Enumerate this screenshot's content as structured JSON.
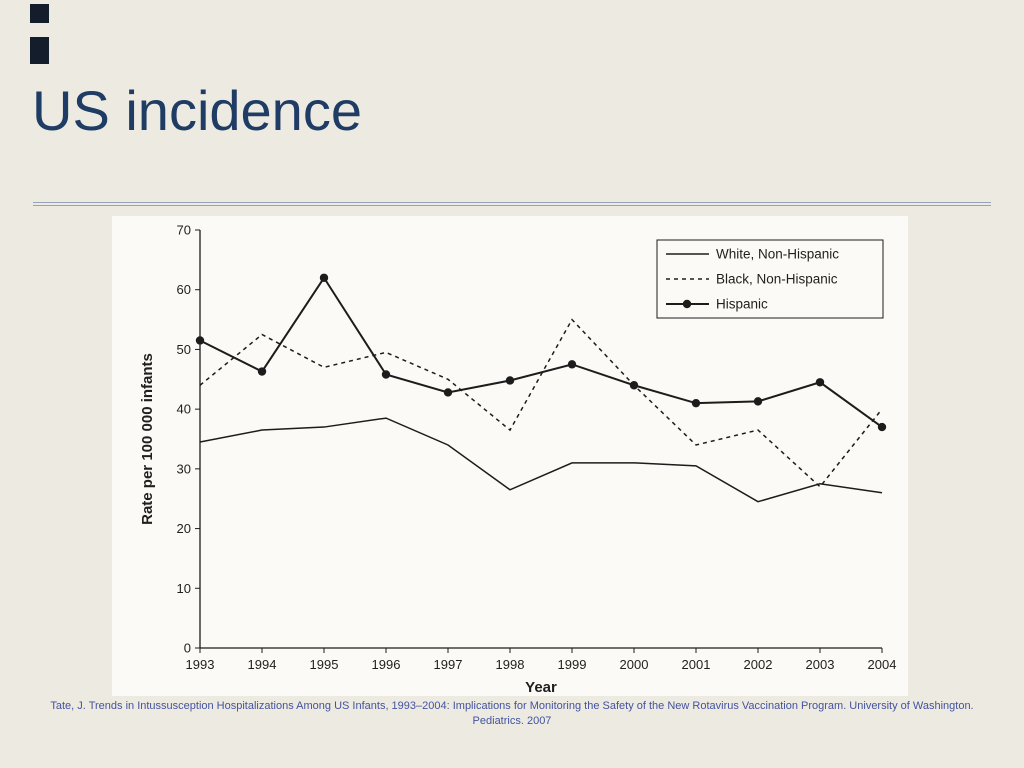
{
  "slide": {
    "title": "US incidence",
    "citation_line1": "Tate, J. Trends in Intussusception Hospitalizations Among US Infants, 1993–2004: Implications for Monitoring the Safety of the New Rotavirus Vaccination Program. University of Washington.",
    "citation_line2": "Pediatrics. 2007"
  },
  "chart_data": {
    "type": "line",
    "title": "",
    "xlabel": "Year",
    "ylabel": "Rate per 100 000 infants",
    "x": [
      1993,
      1994,
      1995,
      1996,
      1997,
      1998,
      1999,
      2000,
      2001,
      2002,
      2003,
      2004
    ],
    "ylim": [
      0,
      70
    ],
    "yticks": [
      0,
      10,
      20,
      30,
      40,
      50,
      60,
      70
    ],
    "grid": false,
    "legend_position": "top-right",
    "line_color": "#1c1c1c",
    "series": [
      {
        "id": "white-non-hispanic",
        "name": "White, Non-Hispanic",
        "line": "solid",
        "marker": false,
        "values": [
          34.5,
          36.5,
          37,
          38.5,
          34,
          26.5,
          31,
          31,
          30.5,
          24.5,
          27.5,
          26
        ]
      },
      {
        "id": "black-non-hispanic",
        "name": "Black, Non-Hispanic",
        "line": "dashed",
        "marker": false,
        "values": [
          44,
          52.5,
          47,
          49.5,
          45,
          36.5,
          55,
          44,
          34,
          36.5,
          27,
          40
        ]
      },
      {
        "id": "hispanic",
        "name": "Hispanic",
        "line": "solid",
        "marker": true,
        "values": [
          51.5,
          46.3,
          62,
          45.8,
          42.8,
          44.8,
          47.5,
          44,
          41,
          41.3,
          44.5,
          37
        ]
      }
    ]
  }
}
